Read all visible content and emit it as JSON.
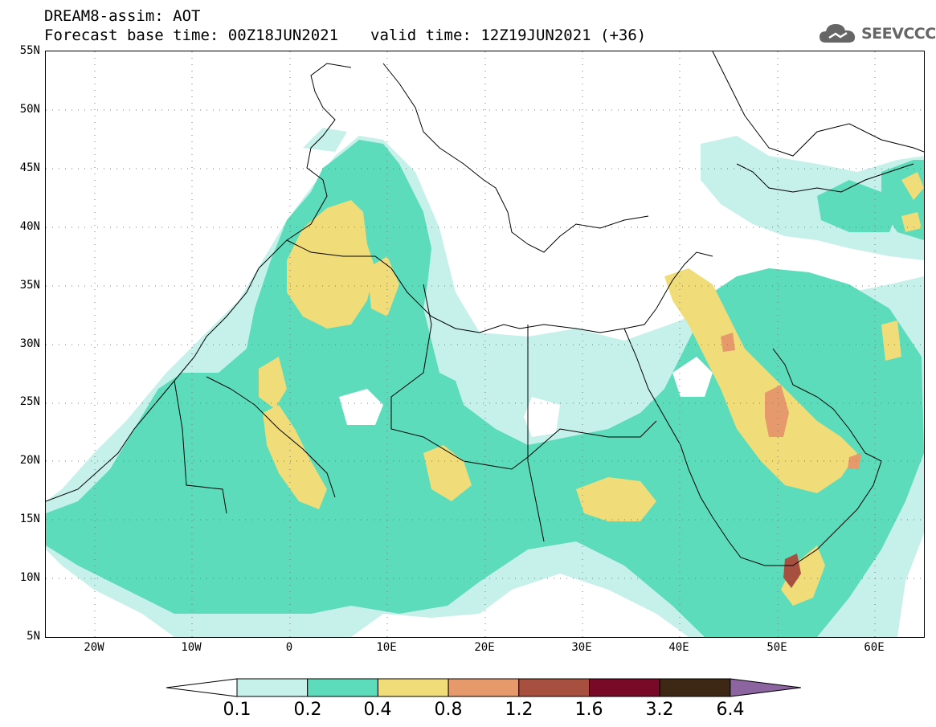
{
  "header": {
    "title": "DREAM8-assim: AOT",
    "base_time": "Forecast base time: 00Z18JUN2021",
    "valid_time": "valid time: 12Z19JUN2021 (+36)",
    "logo_text": "SEEVCCC"
  },
  "map": {
    "variable": "AOT",
    "lat_range": [
      5,
      55
    ],
    "lon_range": [
      -25,
      65
    ],
    "lat_labels": [
      "55N",
      "50N",
      "45N",
      "40N",
      "35N",
      "30N",
      "25N",
      "20N",
      "15N",
      "10N",
      "5N"
    ],
    "lon_labels": [
      "20W",
      "10W",
      "0",
      "10E",
      "20E",
      "30E",
      "40E",
      "50E",
      "60E"
    ]
  },
  "colorbar": {
    "levels": [
      "0.1",
      "0.2",
      "0.4",
      "0.8",
      "1.2",
      "1.6",
      "3.2",
      "6.4"
    ],
    "colors": [
      "#ffffff",
      "#c6f0ea",
      "#5cdcba",
      "#f0dc78",
      "#e69a6c",
      "#a85040",
      "#780a28",
      "#3c2814",
      "#8c64a0"
    ]
  }
}
